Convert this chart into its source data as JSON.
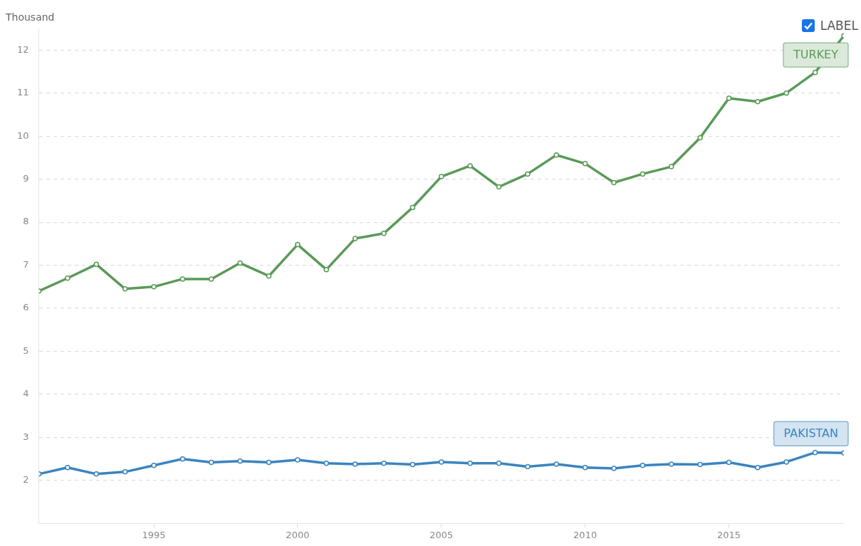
{
  "chart_data": {
    "type": "line",
    "ylabel": "Thousand",
    "annotations": [
      "LABEL"
    ],
    "x": [
      1991,
      1992,
      1993,
      1994,
      1995,
      1996,
      1997,
      1998,
      1999,
      2000,
      2001,
      2002,
      2003,
      2004,
      2005,
      2006,
      2007,
      2008,
      2009,
      2010,
      2011,
      2012,
      2013,
      2014,
      2015,
      2016,
      2017,
      2018,
      2019
    ],
    "series": [
      {
        "name": "TURKEY",
        "color": "#5a9a58",
        "values": [
          6.4,
          6.7,
          7.02,
          6.45,
          6.5,
          6.68,
          6.68,
          7.05,
          6.75,
          7.48,
          6.9,
          7.62,
          7.74,
          8.34,
          9.06,
          9.31,
          8.82,
          9.12,
          9.56,
          9.36,
          8.92,
          9.12,
          9.29,
          9.96,
          10.88,
          10.8,
          11.0,
          11.48,
          12.33
        ]
      },
      {
        "name": "PAKISTAN",
        "color": "#3a84c0",
        "values": [
          2.15,
          2.3,
          2.15,
          2.2,
          2.35,
          2.5,
          2.42,
          2.45,
          2.42,
          2.48,
          2.4,
          2.38,
          2.4,
          2.37,
          2.43,
          2.4,
          2.4,
          2.32,
          2.38,
          2.3,
          2.28,
          2.35,
          2.38,
          2.37,
          2.42,
          2.3,
          2.43,
          2.65,
          2.64
        ]
      }
    ],
    "xlim": [
      1991,
      2019
    ],
    "xticks": [
      1995,
      2000,
      2005,
      2010,
      2015
    ],
    "ylim": [
      1,
      12.5
    ],
    "yticks": [
      2,
      3,
      4,
      5,
      6,
      7,
      8,
      9,
      10,
      11,
      12
    ],
    "grid": "y",
    "marker": "circle",
    "line_style": "solid",
    "legend": false
  }
}
